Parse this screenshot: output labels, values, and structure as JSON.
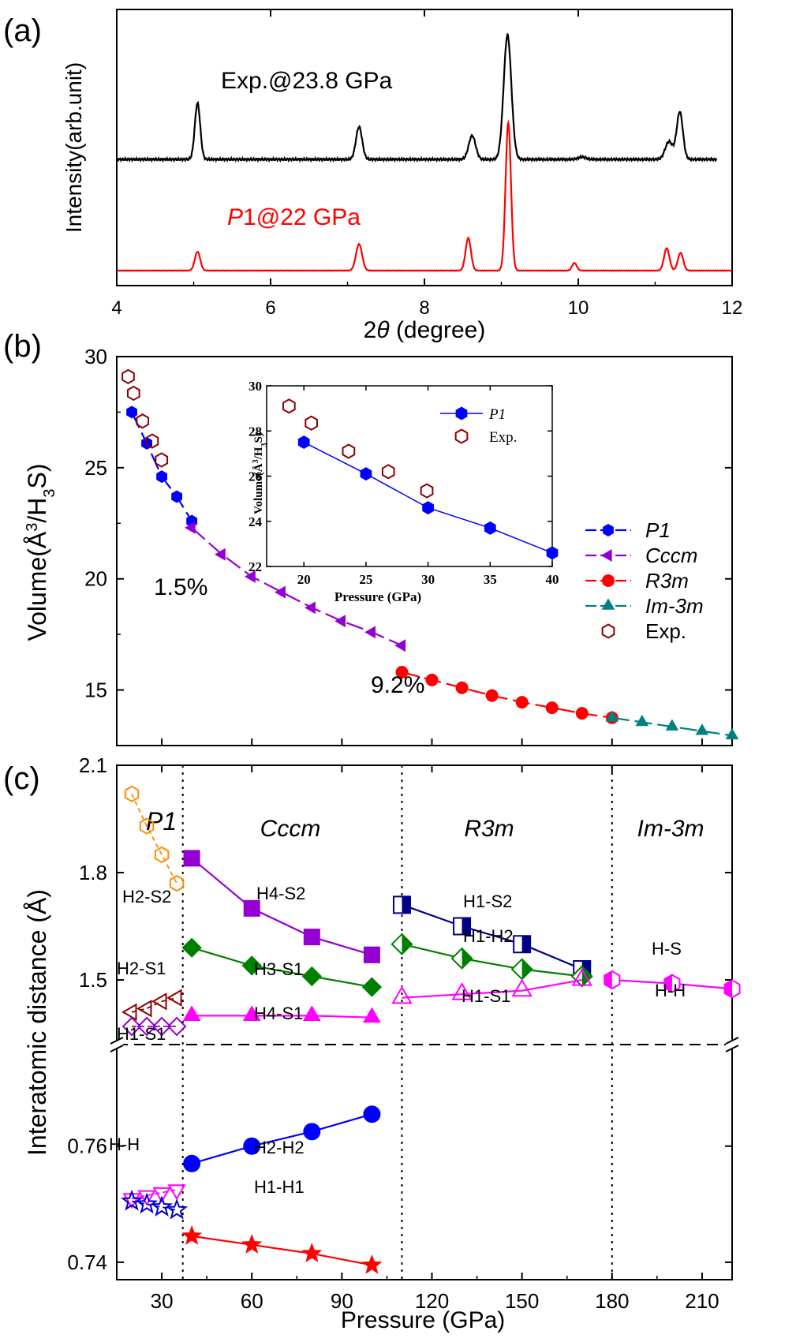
{
  "chart_data": [
    {
      "panel": "(a)",
      "type": "line",
      "xlabel_sym": "2θ",
      "xlabel_unit": "(degree)",
      "ylabel": "Intensity(arb.unit)",
      "xlim": [
        4,
        12
      ],
      "xticks": [
        4,
        6,
        8,
        10,
        12
      ],
      "series": [
        {
          "name": "Exp.@23.8 GPa",
          "color": "#000000",
          "x_range": [
            4,
            11.8
          ],
          "baseline": 0.35,
          "peaks": [
            [
              5.05,
              0.95,
              0.035
            ],
            [
              7.15,
              0.55,
              0.04
            ],
            [
              8.62,
              0.4,
              0.045
            ],
            [
              9.08,
              2.1,
              0.05
            ],
            [
              10.05,
              0.04,
              0.05
            ],
            [
              11.18,
              0.3,
              0.05
            ],
            [
              11.32,
              0.8,
              0.04
            ]
          ]
        },
        {
          "name": "P1@22 GPa",
          "name_italic": "P",
          "name_rest": "1@22 GPa",
          "color": "#ff0000",
          "x_range": [
            4,
            12
          ],
          "baseline": -1.0,
          "peaks": [
            [
              5.05,
              0.32,
              0.035
            ],
            [
              7.15,
              0.45,
              0.04
            ],
            [
              8.57,
              0.55,
              0.035
            ],
            [
              9.09,
              2.5,
              0.035
            ],
            [
              9.95,
              0.13,
              0.03
            ],
            [
              11.15,
              0.38,
              0.035
            ],
            [
              11.33,
              0.3,
              0.035
            ]
          ]
        }
      ]
    },
    {
      "panel": "(b)",
      "type": "line",
      "ylabel": "Volume(Å³/H₃S)",
      "xlim": [
        15,
        220
      ],
      "ylim": [
        12.5,
        30
      ],
      "yticks": [
        15,
        20,
        25,
        30
      ],
      "series": [
        {
          "name": "P1",
          "italic": true,
          "color": "#0000ff",
          "marker": "hexagon",
          "x": [
            20,
            25,
            30,
            35,
            40
          ],
          "y": [
            27.5,
            26.1,
            24.6,
            23.7,
            22.6
          ]
        },
        {
          "name": "Cccm",
          "italic": true,
          "color": "#9400d3",
          "marker": "triangle-left",
          "x": [
            40,
            50,
            60,
            70,
            80,
            90,
            100,
            110
          ],
          "y": [
            22.3,
            21.1,
            20.1,
            19.4,
            18.7,
            18.1,
            17.6,
            17.0
          ]
        },
        {
          "name": "R3m",
          "italic": true,
          "color": "#ff0000",
          "marker": "circle",
          "x": [
            110,
            120,
            130,
            140,
            150,
            160,
            170,
            180
          ],
          "y": [
            15.8,
            15.45,
            15.1,
            14.75,
            14.45,
            14.2,
            13.95,
            13.75
          ]
        },
        {
          "name": "Im-3m",
          "italic": true,
          "color": "#008080",
          "marker": "triangle-up",
          "x": [
            180,
            190,
            200,
            210,
            220
          ],
          "y": [
            13.75,
            13.55,
            13.35,
            13.15,
            12.95
          ]
        },
        {
          "name": "Exp.",
          "italic": false,
          "color": "#8b0000",
          "marker": "hexagon-open",
          "x": [
            18.8,
            20.6,
            23.6,
            26.8,
            29.9
          ],
          "y": [
            29.1,
            28.35,
            27.1,
            26.2,
            25.35
          ]
        }
      ],
      "annotations": [
        "1.5%",
        "9.2%"
      ],
      "inset": {
        "xlabel": "Pressure (GPa)",
        "ylabel": "Volume(Å³/H₃S)",
        "xlim": [
          17,
          40
        ],
        "ylim": [
          22,
          30
        ],
        "xticks": [
          20,
          25,
          30,
          35,
          40
        ],
        "yticks": [
          22,
          24,
          26,
          28,
          30
        ],
        "legend": [
          "P1",
          "Exp."
        ]
      }
    },
    {
      "panel": "(c)",
      "type": "scatter",
      "xlabel": "Pressure (GPa)",
      "ylabel": "Interatomic distance (Å)",
      "xlim": [
        15,
        220
      ],
      "xticks": [
        30,
        60,
        90,
        120,
        150,
        180,
        210
      ],
      "upper_ylim": [
        1.37,
        2.1
      ],
      "upper_yticks": [
        1.5,
        1.8,
        2.1
      ],
      "lower_ylim": [
        0.737,
        0.7745
      ],
      "lower_yticks": [
        0.74,
        0.76
      ],
      "phase_boundaries": [
        37,
        110,
        180
      ],
      "phases": [
        "P1",
        "Cccm",
        "R3m",
        "Im-3m"
      ],
      "series": [
        {
          "name": "H2-S2",
          "phase": "P1",
          "color": "#ff8c00",
          "marker": "hexagon-open",
          "x": [
            20,
            25,
            30,
            35
          ],
          "y": [
            2.02,
            1.93,
            1.85,
            1.77
          ]
        },
        {
          "name": "H2-S1",
          "phase": "P1",
          "color": "#8b0000",
          "marker": "triangle-left-open",
          "x": [
            20,
            25,
            30,
            35
          ],
          "y": [
            1.41,
            1.42,
            1.44,
            1.45
          ]
        },
        {
          "name": "H1-S1",
          "phase": "P1",
          "color": "#9400d3",
          "marker": "diamond-open",
          "x": [
            20,
            25,
            30,
            35
          ],
          "y": [
            1.37,
            1.37,
            1.37,
            1.37
          ]
        },
        {
          "name": "H-H",
          "phase": "P1",
          "color": "#ff00ff",
          "marker": "triangle-down-open",
          "x": [
            20,
            25,
            30,
            35
          ],
          "y": [
            0.751,
            0.7515,
            0.752,
            0.7525
          ]
        },
        {
          "name": "H-H",
          "phase": "P1",
          "color": "#0000cd",
          "marker": "star-open",
          "x": [
            20,
            25,
            30,
            35
          ],
          "y": [
            0.7505,
            0.75,
            0.7495,
            0.749
          ]
        },
        {
          "name": "H4-S2",
          "phase": "Cccm",
          "color": "#9400d3",
          "marker": "square",
          "x": [
            40,
            60,
            80,
            100
          ],
          "y": [
            1.84,
            1.7,
            1.62,
            1.57
          ]
        },
        {
          "name": "H3-S1",
          "phase": "Cccm",
          "color": "#008000",
          "marker": "diamond",
          "x": [
            40,
            60,
            80,
            100
          ],
          "y": [
            1.59,
            1.54,
            1.51,
            1.48
          ]
        },
        {
          "name": "H4-S1",
          "phase": "Cccm",
          "color": "#ff00ff",
          "marker": "triangle-up",
          "x": [
            40,
            60,
            80,
            100
          ],
          "y": [
            1.4,
            1.4,
            1.4,
            1.395
          ]
        },
        {
          "name": "H2-H2",
          "phase": "Cccm",
          "color": "#0000ff",
          "marker": "circle",
          "x": [
            40,
            60,
            80,
            100
          ],
          "y": [
            0.757,
            0.76,
            0.7625,
            0.7655
          ]
        },
        {
          "name": "H1-H1",
          "phase": "Cccm",
          "color": "#ff0000",
          "marker": "star",
          "x": [
            40,
            60,
            80,
            100
          ],
          "y": [
            0.7445,
            0.743,
            0.7415,
            0.7395
          ]
        },
        {
          "name": "H1-S2",
          "phase": "R3m",
          "color": "#00008b",
          "marker": "square-halfright",
          "x": [
            110,
            130,
            150,
            170
          ],
          "y": [
            1.71,
            1.65,
            1.6,
            1.53
          ]
        },
        {
          "name": "H1-H2",
          "phase": "R3m",
          "color": "#008000",
          "marker": "diamond-halfright",
          "x": [
            110,
            130,
            150,
            170
          ],
          "y": [
            1.6,
            1.56,
            1.53,
            1.51
          ]
        },
        {
          "name": "H1-S1",
          "phase": "R3m",
          "color": "#ff00ff",
          "marker": "triangle-up-open",
          "x": [
            110,
            130,
            150,
            170
          ],
          "y": [
            1.45,
            1.46,
            1.47,
            1.5
          ]
        },
        {
          "name": "H-S",
          "phase": "Im-3m",
          "color": "#ff00ff",
          "marker": "hexagon-halfleft",
          "x": [
            180,
            200,
            220
          ],
          "y": [
            1.5,
            1.49,
            1.475
          ]
        }
      ],
      "labels": [
        "H2-S2",
        "H4-S2",
        "H1-S2",
        "H2-S1",
        "H3-S1",
        "H1-H2",
        "H-S",
        "H-H",
        "H1-S1",
        "H4-S1",
        "H1-S1",
        "H-H",
        "H2-H2",
        "H1-H1"
      ]
    }
  ]
}
